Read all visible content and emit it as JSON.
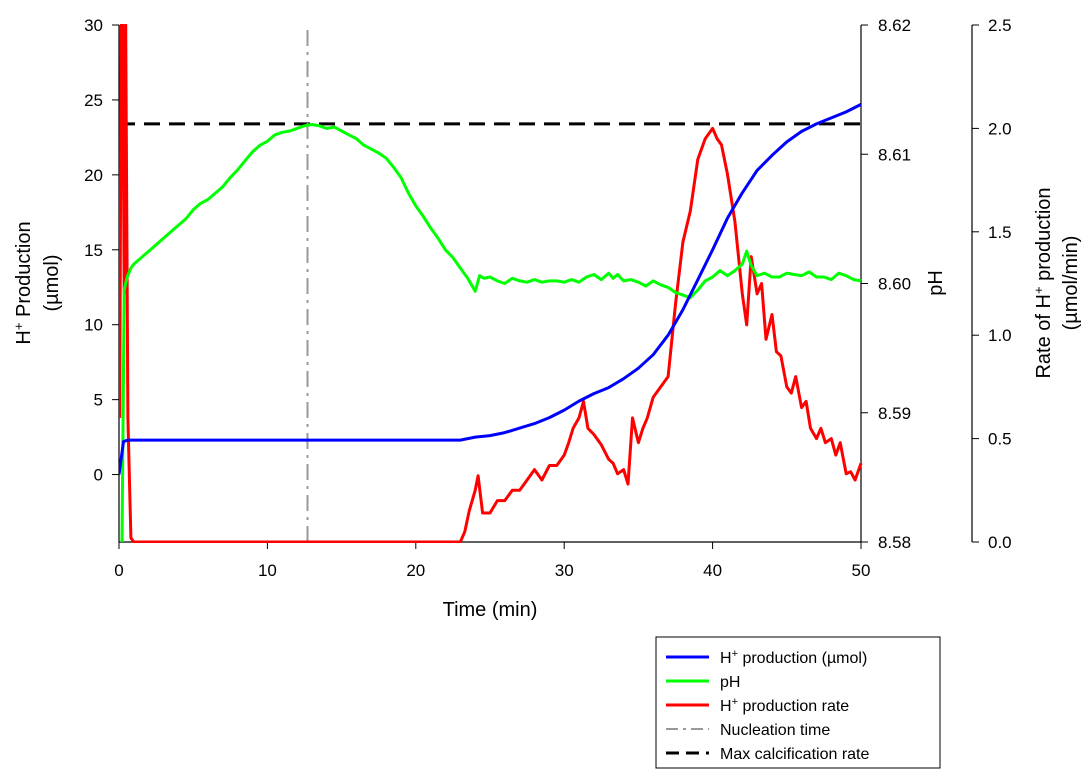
{
  "chart_data": {
    "type": "line",
    "title": "",
    "xlabel": "Time (min)",
    "xlim": [
      0,
      50
    ],
    "x_ticks": [
      "0",
      "10",
      "20",
      "30",
      "40",
      "50"
    ],
    "axes": {
      "left": {
        "label_line1_main": "H",
        "label_line1_sup": "+",
        "label_line1_rest": " Production",
        "label_line2": "(µmol)",
        "ylim": [
          -4.5,
          30
        ],
        "ticks": [
          "0",
          "5",
          "10",
          "15",
          "20",
          "25",
          "30"
        ]
      },
      "middle": {
        "label": "pH",
        "ylim": [
          8.58,
          8.62
        ],
        "ticks": [
          "8.58",
          "8.59",
          "8.60",
          "8.61",
          "8.62"
        ]
      },
      "right": {
        "label_line1_main": "Rate of H",
        "label_line1_sup": "+",
        "label_line1_rest": " production",
        "label_line2": "(µmol/min)",
        "ylim": [
          0,
          2.5
        ],
        "ticks": [
          "0.0",
          "0.5",
          "1.0",
          "1.5",
          "2.0",
          "2.5"
        ]
      }
    },
    "series": [
      {
        "key": "h_production",
        "axis": "left",
        "color": "#0000ff",
        "style": "solid",
        "x": [
          0,
          0.3,
          0.6,
          1,
          5,
          10,
          15,
          20,
          23,
          24,
          25,
          26,
          27,
          28,
          29,
          30,
          31,
          32,
          33,
          34,
          35,
          36,
          37,
          38,
          39,
          40,
          41,
          42,
          43,
          44,
          45,
          46,
          47,
          48,
          49,
          50
        ],
        "y": [
          0,
          2.2,
          2.3,
          2.3,
          2.3,
          2.3,
          2.3,
          2.3,
          2.3,
          2.5,
          2.6,
          2.8,
          3.1,
          3.4,
          3.8,
          4.3,
          4.9,
          5.4,
          5.8,
          6.4,
          7.1,
          8.0,
          9.3,
          11.0,
          13.0,
          15.0,
          17.1,
          18.8,
          20.3,
          21.3,
          22.2,
          22.9,
          23.4,
          23.8,
          24.2,
          24.7
        ]
      },
      {
        "key": "ph",
        "axis": "middle",
        "color": "#00ff00",
        "style": "solid",
        "x": [
          0.2,
          0.35,
          0.55,
          0.8,
          1,
          1.5,
          2,
          2.5,
          3,
          3.5,
          4,
          4.5,
          5,
          5.5,
          6,
          6.5,
          7,
          7.5,
          8,
          8.5,
          9,
          9.5,
          10,
          10.5,
          11,
          11.5,
          12,
          12.5,
          13,
          13.5,
          14,
          14.5,
          15,
          15.5,
          16,
          16.5,
          17,
          17.5,
          18,
          18.5,
          19,
          19.5,
          20,
          20.5,
          21,
          21.5,
          22,
          22.5,
          23,
          23.5,
          24,
          24.3,
          24.6,
          25,
          25.5,
          26,
          26.5,
          27,
          27.5,
          28,
          28.5,
          29,
          29.5,
          30,
          30.5,
          31,
          31.5,
          32,
          32.5,
          33,
          33.3,
          33.6,
          34,
          34.5,
          35,
          35.5,
          36,
          36.5,
          37,
          37.5,
          38,
          38.5,
          39,
          39.5,
          40,
          40.5,
          41,
          41.5,
          42,
          42.3,
          42.6,
          43,
          43.5,
          44,
          44.5,
          45,
          45.5,
          46,
          46.5,
          47,
          47.5,
          48,
          48.5,
          49,
          49.5,
          50
        ],
        "y": [
          8.58,
          8.5995,
          8.6005,
          8.6012,
          8.6015,
          8.602,
          8.6025,
          8.603,
          8.6035,
          8.604,
          8.6045,
          8.605,
          8.6057,
          8.6062,
          8.6065,
          8.607,
          8.6075,
          8.6082,
          8.6088,
          8.6095,
          8.6102,
          8.6107,
          8.611,
          8.6115,
          8.6117,
          8.6118,
          8.612,
          8.6122,
          8.6123,
          8.6122,
          8.612,
          8.6121,
          8.6118,
          8.6115,
          8.6112,
          8.6107,
          8.6104,
          8.6101,
          8.6097,
          8.609,
          8.6082,
          8.607,
          8.606,
          8.6052,
          8.6043,
          8.6035,
          8.6026,
          8.602,
          8.6012,
          8.6004,
          8.5994,
          8.6006,
          8.6004,
          8.6005,
          8.6002,
          8.6,
          8.6004,
          8.6002,
          8.6001,
          8.6003,
          8.6001,
          8.6002,
          8.6002,
          8.6001,
          8.6003,
          8.6001,
          8.6005,
          8.6007,
          8.6003,
          8.6008,
          8.6004,
          8.6007,
          8.6002,
          8.6003,
          8.6001,
          8.5998,
          8.6002,
          8.5999,
          8.5997,
          8.5993,
          8.5991,
          8.5989,
          8.5995,
          8.6002,
          8.6005,
          8.601,
          8.6006,
          8.601,
          8.6015,
          8.6025,
          8.6014,
          8.6006,
          8.6008,
          8.6005,
          8.6005,
          8.6008,
          8.6007,
          8.6006,
          8.6009,
          8.6005,
          8.6005,
          8.6003,
          8.6008,
          8.6006,
          8.6003,
          8.6002
        ]
      },
      {
        "key": "h_rate",
        "axis": "right",
        "color": "#ff0000",
        "style": "solid",
        "x": [
          0.05,
          0.15,
          0.25,
          0.35,
          0.45,
          0.6,
          0.8,
          1,
          5,
          10,
          15,
          20,
          23,
          23.3,
          23.6,
          24,
          24.2,
          24.5,
          25,
          25.5,
          26,
          26.5,
          27,
          27.5,
          28,
          28.5,
          29,
          29.5,
          30,
          30.3,
          30.6,
          31,
          31.3,
          31.6,
          32,
          32.5,
          33,
          33.3,
          33.6,
          34,
          34.3,
          34.6,
          35,
          35.3,
          35.6,
          36,
          36.5,
          37,
          37.5,
          38,
          38.5,
          39,
          39.5,
          40,
          40.3,
          40.6,
          41,
          41.5,
          42,
          42.3,
          42.6,
          43,
          43.3,
          43.6,
          44,
          44.3,
          44.6,
          45,
          45.3,
          45.6,
          46,
          46.3,
          46.6,
          47,
          47.3,
          47.6,
          48,
          48.3,
          48.6,
          49,
          49.3,
          49.6,
          50
        ],
        "y": [
          0.6,
          2.5,
          2.5,
          1.2,
          2.5,
          0.6,
          0.02,
          0,
          0,
          0,
          0,
          0,
          0,
          0.05,
          0.15,
          0.25,
          0.32,
          0.14,
          0.14,
          0.2,
          0.2,
          0.25,
          0.25,
          0.3,
          0.35,
          0.3,
          0.37,
          0.37,
          0.42,
          0.48,
          0.55,
          0.6,
          0.68,
          0.55,
          0.52,
          0.47,
          0.4,
          0.38,
          0.33,
          0.35,
          0.28,
          0.6,
          0.48,
          0.55,
          0.6,
          0.7,
          0.75,
          0.8,
          1.15,
          1.45,
          1.6,
          1.85,
          1.95,
          2.0,
          1.95,
          1.92,
          1.78,
          1.55,
          1.2,
          1.05,
          1.38,
          1.2,
          1.25,
          0.98,
          1.1,
          0.92,
          0.9,
          0.75,
          0.72,
          0.8,
          0.65,
          0.68,
          0.55,
          0.5,
          0.55,
          0.48,
          0.5,
          0.42,
          0.48,
          0.33,
          0.34,
          0.3,
          0.38
        ]
      },
      {
        "key": "nucleation",
        "axis": "left",
        "color": "#999999",
        "style": "dash-dot",
        "x": [
          12.7,
          12.7
        ],
        "y": [
          -4.5,
          30
        ]
      },
      {
        "key": "max_rate",
        "axis": "left",
        "color": "#000000",
        "style": "dashed",
        "x": [
          0,
          50
        ],
        "y": [
          23.4,
          23.4
        ]
      }
    ],
    "legend": {
      "placement": "bottom-right",
      "entries": [
        {
          "key": "h_production",
          "main": "H",
          "sup": "+",
          "rest": " production (µmol)"
        },
        {
          "key": "ph",
          "main": "pH",
          "sup": "",
          "rest": ""
        },
        {
          "key": "h_rate",
          "main": "H",
          "sup": "+",
          "rest": " production rate"
        },
        {
          "key": "nucleation",
          "main": "Nucleation time",
          "sup": "",
          "rest": ""
        },
        {
          "key": "max_rate",
          "main": "Max calcification rate",
          "sup": "",
          "rest": ""
        }
      ]
    }
  }
}
